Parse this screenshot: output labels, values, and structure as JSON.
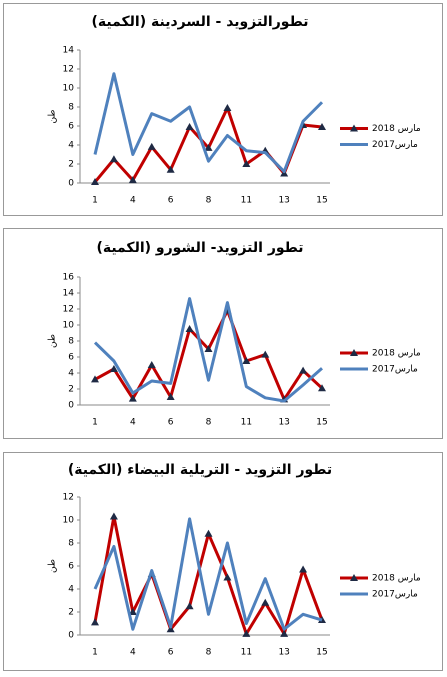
{
  "chart_data": [
    {
      "type": "line",
      "title": "تطورالتزويد - السردينة (الكمية)",
      "y_label": "طن",
      "categories": [
        "1",
        null,
        "4",
        null,
        "6",
        null,
        "8",
        null,
        "11",
        null,
        "13",
        null,
        "15"
      ],
      "ylim": [
        0,
        14
      ],
      "yticks": [
        0,
        2,
        4,
        6,
        8,
        10,
        12,
        14
      ],
      "series": [
        {
          "name": "مارس 2018",
          "color": "#c00000",
          "marker": "triangle",
          "values": [
            0.1,
            2.5,
            0.3,
            3.8,
            1.4,
            5.9,
            3.7,
            7.9,
            2.0,
            3.4,
            1.0,
            6.1,
            5.9
          ]
        },
        {
          "name": "مارس2017",
          "color": "#4f81bd",
          "values": [
            3.0,
            11.5,
            3.0,
            7.3,
            6.5,
            8.0,
            2.3,
            5.0,
            3.4,
            3.2,
            1.2,
            6.5,
            8.5
          ]
        }
      ]
    },
    {
      "type": "line",
      "title": "تطور التزويد- الشورو (الكمية)",
      "y_label": "طن",
      "categories": [
        "1",
        null,
        "4",
        null,
        "6",
        null,
        "8",
        null,
        "11",
        null,
        "13",
        null,
        "15"
      ],
      "ylim": [
        0,
        16
      ],
      "yticks": [
        0,
        2,
        4,
        6,
        8,
        10,
        12,
        14,
        16
      ],
      "series": [
        {
          "name": "مارس 2018",
          "color": "#c00000",
          "marker": "triangle",
          "values": [
            3.2,
            4.5,
            0.8,
            5.0,
            1.0,
            9.5,
            7.0,
            11.8,
            5.5,
            6.3,
            0.7,
            4.3,
            2.1
          ]
        },
        {
          "name": "مارس2017",
          "color": "#4f81bd",
          "values": [
            7.8,
            5.5,
            1.5,
            3.0,
            2.7,
            13.3,
            3.1,
            12.8,
            2.3,
            0.9,
            0.5,
            2.5,
            4.6
          ]
        }
      ]
    },
    {
      "type": "line",
      "title": "تطور التزويد - التريلية البيضاء (الكمية)",
      "y_label": "طن",
      "categories": [
        "1",
        null,
        "4",
        null,
        "6",
        null,
        "8",
        null,
        "11",
        null,
        "13",
        null,
        "15"
      ],
      "ylim": [
        0,
        12
      ],
      "yticks": [
        0,
        2,
        4,
        6,
        8,
        10,
        12
      ],
      "series": [
        {
          "name": "مارس 2018",
          "color": "#c00000",
          "marker": "triangle",
          "values": [
            1.1,
            10.3,
            2.0,
            5.3,
            0.5,
            2.5,
            8.8,
            5.0,
            0.1,
            2.8,
            0.1,
            5.7,
            1.3
          ]
        },
        {
          "name": "مارس2017",
          "color": "#4f81bd",
          "values": [
            4.0,
            7.7,
            0.5,
            5.6,
            0.7,
            10.1,
            1.8,
            8.0,
            1.0,
            4.9,
            0.5,
            1.8,
            1.3
          ]
        }
      ]
    }
  ]
}
